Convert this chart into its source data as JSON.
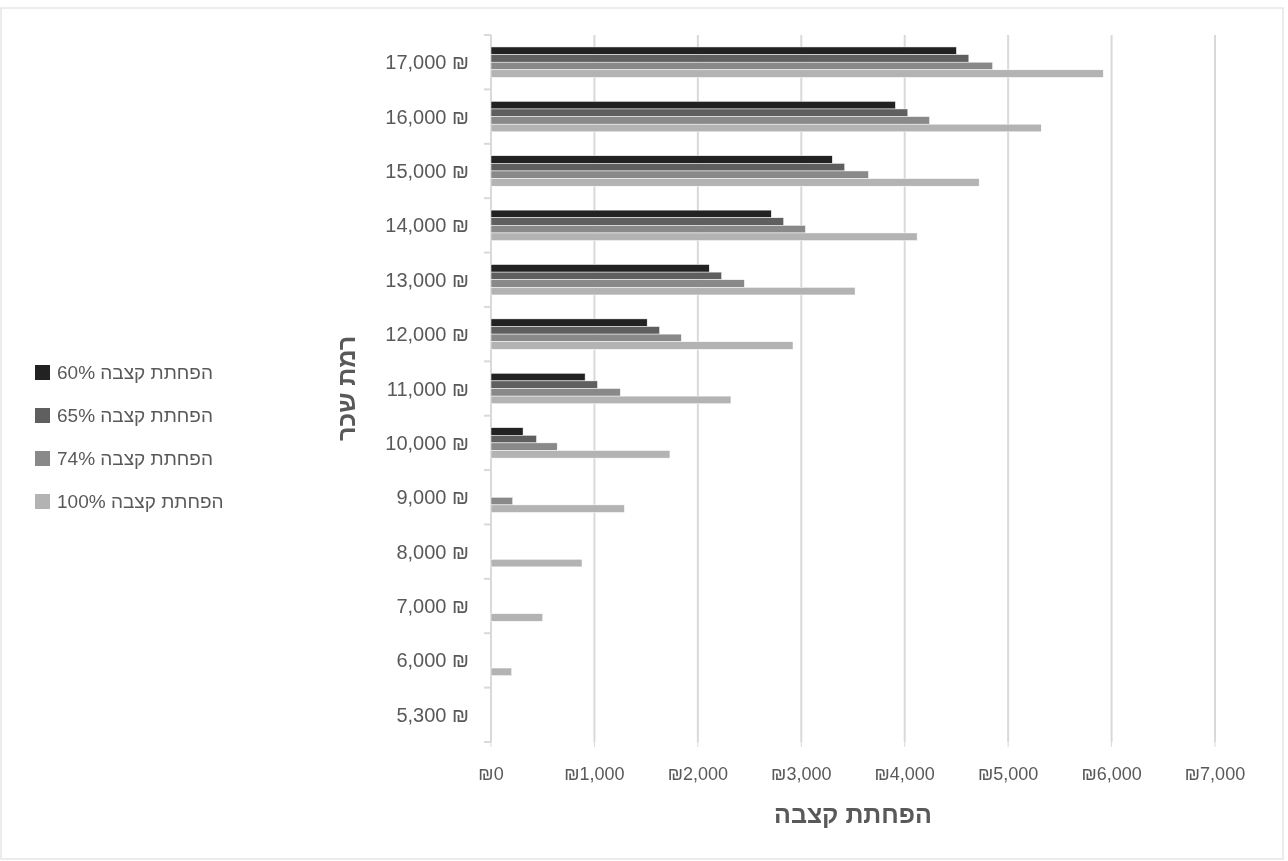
{
  "chart_data": {
    "type": "bar",
    "orientation": "horizontal",
    "xlabel": "הפחתת קצבה",
    "ylabel": "רמת שכר",
    "categories": [
      "17,000 ₪",
      "16,000 ₪",
      "15,000 ₪",
      "14,000 ₪",
      "13,000 ₪",
      "12,000 ₪",
      "11,000 ₪",
      "10,000 ₪",
      "9,000 ₪",
      "8,000 ₪",
      "7,000 ₪",
      "6,000 ₪",
      "5,300 ₪"
    ],
    "series": [
      {
        "name": "הפחתת קצבה 60%",
        "color": "#222222",
        "values": [
          4500,
          3910,
          3300,
          2710,
          2110,
          1510,
          910,
          310,
          0,
          0,
          0,
          0,
          0
        ]
      },
      {
        "name": "הפחתת קצבה 65%",
        "color": "#5f5f5f",
        "values": [
          4620,
          4030,
          3420,
          2830,
          2230,
          1630,
          1030,
          440,
          0,
          0,
          0,
          0,
          0
        ]
      },
      {
        "name": "הפחתת קצבה 74%",
        "color": "#898989",
        "values": [
          4850,
          4240,
          3650,
          3040,
          2450,
          1840,
          1250,
          640,
          210,
          0,
          0,
          0,
          0
        ]
      },
      {
        "name": "הפחתת קצבה 100%",
        "color": "#b3b3b3",
        "values": [
          5920,
          5320,
          4720,
          4120,
          3520,
          2920,
          2320,
          1730,
          1290,
          880,
          500,
          200,
          0
        ]
      }
    ],
    "xlim": [
      0,
      7000
    ],
    "xticks": [
      {
        "value": 0,
        "label": "₪0"
      },
      {
        "value": 1000,
        "label": "₪1,000"
      },
      {
        "value": 2000,
        "label": "₪2,000"
      },
      {
        "value": 3000,
        "label": "₪3,000"
      },
      {
        "value": 4000,
        "label": "₪4,000"
      },
      {
        "value": 5000,
        "label": "₪5,000"
      },
      {
        "value": 6000,
        "label": "₪6,000"
      },
      {
        "value": 7000,
        "label": "₪7,000"
      }
    ],
    "grid": "x",
    "legend": "left"
  }
}
